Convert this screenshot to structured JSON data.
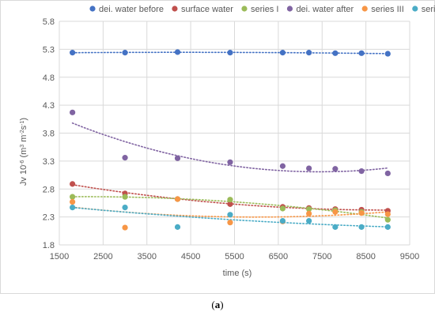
{
  "caption": {
    "prefix": "(",
    "letter": "a",
    "suffix": ")"
  },
  "chart_data": {
    "type": "scatter",
    "xlabel": "time (s)",
    "ylabel": "Jv 10-6 (m3 m-2s-1)",
    "ylabel_parts": {
      "base": "Jv 10",
      "exp1": "-6",
      "mid": " (m",
      "exp2": "3",
      "mid2": " m",
      "exp3": "-2",
      "mid3": "s",
      "exp4": "-1",
      "end": ")"
    },
    "xlim": [
      1500,
      9500
    ],
    "ylim": [
      1.8,
      5.8
    ],
    "x_ticks": [
      1500,
      2500,
      3500,
      4500,
      5500,
      6500,
      7500,
      8500,
      9500
    ],
    "y_ticks": [
      1.8,
      2.3,
      2.8,
      3.3,
      3.8,
      4.3,
      4.8,
      5.3,
      5.8
    ],
    "x_tick_labels": [
      "1500",
      "2500",
      "3500",
      "4500",
      "5500",
      "6500",
      "7500",
      "8500",
      "9500"
    ],
    "y_tick_labels": [
      "1.8",
      "2.3",
      "2.8",
      "3.3",
      "3.8",
      "4.3",
      "4.8",
      "5.3",
      "5.8"
    ],
    "grid": true,
    "legend_position": "top",
    "trendlines": "dotted, polynomial",
    "series": [
      {
        "name": "dei. water before",
        "color": "#4472C4",
        "x": [
          1800,
          3000,
          4200,
          5400,
          6600,
          7200,
          7800,
          8400,
          9000
        ],
        "y": [
          5.24,
          5.24,
          5.25,
          5.24,
          5.24,
          5.24,
          5.23,
          5.23,
          5.22
        ]
      },
      {
        "name": "surface water",
        "color": "#C0504D",
        "x": [
          1800,
          3000,
          4200,
          5400,
          6600,
          7200,
          7800,
          8400,
          9000
        ],
        "y": [
          2.89,
          2.72,
          2.62,
          2.53,
          2.48,
          2.46,
          2.44,
          2.43,
          2.41
        ]
      },
      {
        "name": "series I",
        "color": "#9BBB59",
        "x": [
          1800,
          3000,
          4200,
          5400,
          6600,
          7200,
          7800,
          8400,
          9000
        ],
        "y": [
          2.66,
          2.66,
          2.62,
          2.61,
          2.45,
          2.44,
          2.42,
          2.39,
          2.25
        ]
      },
      {
        "name": "dei. water after",
        "color": "#8064A2",
        "x": [
          1800,
          3000,
          4200,
          5400,
          6600,
          7200,
          7800,
          8400,
          9000
        ],
        "y": [
          4.17,
          3.36,
          3.35,
          3.28,
          3.21,
          3.17,
          3.16,
          3.12,
          3.08
        ]
      },
      {
        "name": "series III",
        "color": "#F79646",
        "x": [
          1800,
          3000,
          4200,
          5400,
          6600,
          7200,
          7800,
          8400,
          9000
        ],
        "y": [
          2.57,
          2.11,
          2.62,
          2.2,
          2.22,
          2.36,
          2.39,
          2.37,
          2.35
        ]
      },
      {
        "name": "series II",
        "color": "#4BACC6",
        "x": [
          1800,
          3000,
          4200,
          5400,
          6600,
          7200,
          7800,
          8400,
          9000
        ],
        "y": [
          2.47,
          2.47,
          2.12,
          2.34,
          2.23,
          2.23,
          2.12,
          2.12,
          2.12
        ]
      }
    ]
  }
}
